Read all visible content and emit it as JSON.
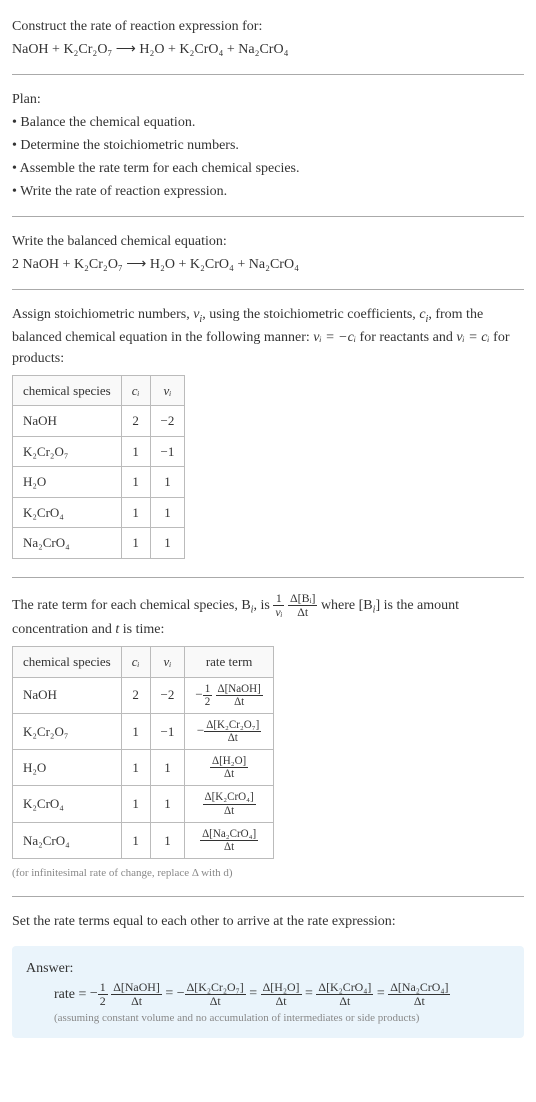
{
  "header": {
    "title": "Construct the rate of reaction expression for:",
    "equation": "NaOH + K₂Cr₂O₇ ⟶ H₂O + K₂CrO₄ + Na₂CrO₄"
  },
  "plan": {
    "title": "Plan:",
    "items": [
      "• Balance the chemical equation.",
      "• Determine the stoichiometric numbers.",
      "• Assemble the rate term for each chemical species.",
      "• Write the rate of reaction expression."
    ]
  },
  "balanced": {
    "title": "Write the balanced chemical equation:",
    "equation": "2 NaOH + K₂Cr₂O₇ ⟶ H₂O + K₂CrO₄ + Na₂CrO₄"
  },
  "stoich": {
    "intro_a": "Assign stoichiometric numbers, ",
    "nu_i": "ν",
    "sub_i": "i",
    "intro_b": ", using the stoichiometric coefficients, ",
    "c_i": "c",
    "intro_c": ", from the balanced chemical equation in the following manner: ",
    "rel1": "νᵢ = −cᵢ",
    "intro_d": " for reactants and ",
    "rel2": "νᵢ = cᵢ",
    "intro_e": " for products:",
    "table": {
      "headers": [
        "chemical species",
        "cᵢ",
        "νᵢ"
      ],
      "rows": [
        [
          "NaOH",
          "2",
          "−2"
        ],
        [
          "K₂Cr₂O₇",
          "1",
          "−1"
        ],
        [
          "H₂O",
          "1",
          "1"
        ],
        [
          "K₂CrO₄",
          "1",
          "1"
        ],
        [
          "Na₂CrO₄",
          "1",
          "1"
        ]
      ]
    }
  },
  "rateterm": {
    "intro_a": "The rate term for each chemical species, B",
    "sub_i": "i",
    "intro_b": ", is ",
    "frac1_num": "1",
    "frac1_den": "νᵢ",
    "frac2_num": "Δ[Bᵢ]",
    "frac2_den": "Δt",
    "intro_c": " where [B",
    "intro_d": "] is the amount concentration and ",
    "t": "t",
    "intro_e": " is time:",
    "table": {
      "headers": [
        "chemical species",
        "cᵢ",
        "νᵢ",
        "rate term"
      ],
      "rows": [
        {
          "species": "NaOH",
          "c": "2",
          "nu": "−2",
          "sign": "−",
          "coef_num": "1",
          "coef_den": "2",
          "d_num": "Δ[NaOH]",
          "d_den": "Δt"
        },
        {
          "species": "K₂Cr₂O₇",
          "c": "1",
          "nu": "−1",
          "sign": "−",
          "coef_num": "",
          "coef_den": "",
          "d_num": "Δ[K₂Cr₂O₇]",
          "d_den": "Δt"
        },
        {
          "species": "H₂O",
          "c": "1",
          "nu": "1",
          "sign": "",
          "coef_num": "",
          "coef_den": "",
          "d_num": "Δ[H₂O]",
          "d_den": "Δt"
        },
        {
          "species": "K₂CrO₄",
          "c": "1",
          "nu": "1",
          "sign": "",
          "coef_num": "",
          "coef_den": "",
          "d_num": "Δ[K₂CrO₄]",
          "d_den": "Δt"
        },
        {
          "species": "Na₂CrO₄",
          "c": "1",
          "nu": "1",
          "sign": "",
          "coef_num": "",
          "coef_den": "",
          "d_num": "Δ[Na₂CrO₄]",
          "d_den": "Δt"
        }
      ]
    },
    "note": "(for infinitesimal rate of change, replace Δ with d)"
  },
  "final": {
    "title": "Set the rate terms equal to each other to arrive at the rate expression:"
  },
  "answer": {
    "label": "Answer:",
    "rate_label": "rate = ",
    "terms": [
      {
        "sign": "−",
        "coef_num": "1",
        "coef_den": "2",
        "d_num": "Δ[NaOH]",
        "d_den": "Δt"
      },
      {
        "sign": "−",
        "coef_num": "",
        "coef_den": "",
        "d_num": "Δ[K₂Cr₂O₇]",
        "d_den": "Δt"
      },
      {
        "sign": "",
        "coef_num": "",
        "coef_den": "",
        "d_num": "Δ[H₂O]",
        "d_den": "Δt"
      },
      {
        "sign": "",
        "coef_num": "",
        "coef_den": "",
        "d_num": "Δ[K₂CrO₄]",
        "d_den": "Δt"
      },
      {
        "sign": "",
        "coef_num": "",
        "coef_den": "",
        "d_num": "Δ[Na₂CrO₄]",
        "d_den": "Δt"
      }
    ],
    "note": "(assuming constant volume and no accumulation of intermediates or side products)"
  }
}
